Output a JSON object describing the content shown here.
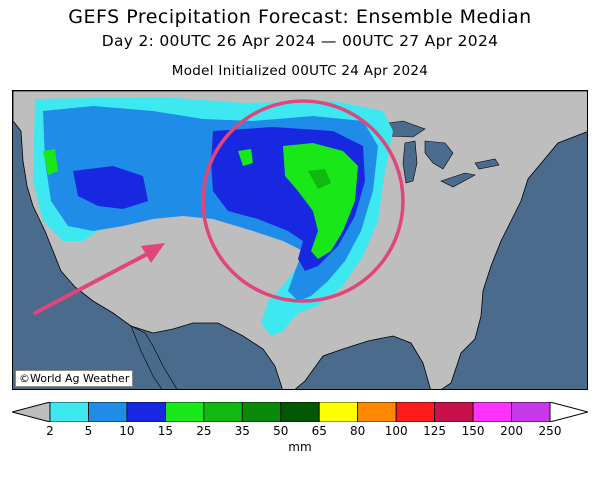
{
  "title": "GEFS Precipitation Forecast: Ensemble Median",
  "subtitle": "Day 2: 00UTC 26 Apr 2024 — 00UTC 27 Apr 2024",
  "init_line": "Model Initialized 00UTC 24 Apr 2024",
  "credit": "©World Ag Weather",
  "colors": {
    "land": "#bebebe",
    "water": "#4a6b8c",
    "annotation": "#e0457b"
  },
  "legend": {
    "unit": "mm",
    "ticks": [
      "2",
      "5",
      "10",
      "15",
      "25",
      "35",
      "50",
      "65",
      "80",
      "100",
      "125",
      "150",
      "200",
      "250"
    ],
    "bins": [
      {
        "color": "#3ee8f0"
      },
      {
        "color": "#1f8ce8"
      },
      {
        "color": "#1828e0"
      },
      {
        "color": "#18e818"
      },
      {
        "color": "#10b810"
      },
      {
        "color": "#0a8a0a"
      },
      {
        "color": "#035803"
      },
      {
        "color": "#ffff00"
      },
      {
        "color": "#ff8800"
      },
      {
        "color": "#ff1a1a"
      },
      {
        "color": "#c8104a"
      },
      {
        "color": "#ff33ff"
      },
      {
        "color": "#c838e8"
      }
    ]
  },
  "map": {
    "region": "Contiguous United States",
    "annotations": [
      {
        "type": "circle",
        "focus": "Central Plains"
      },
      {
        "type": "arrow",
        "points_to": "Central Plains"
      }
    ]
  }
}
